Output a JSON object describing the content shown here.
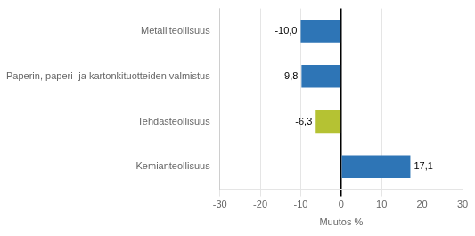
{
  "chart_data": {
    "type": "bar",
    "orientation": "horizontal",
    "categories": [
      "Metalliteollisuus",
      "Paperin, paperi- ja kartonkituotteiden valmistus",
      "Tehdasteollisuus",
      "Kemianteollisuus"
    ],
    "values": [
      -10.0,
      -9.8,
      -6.3,
      17.1
    ],
    "value_labels": [
      "-10,0",
      "-9,8",
      "-6,3",
      "17,1"
    ],
    "data_labels": true,
    "colors": [
      "#2E75B6",
      "#2E75B6",
      "#B5C233",
      "#2E75B6"
    ],
    "xlabel": "Muutos %",
    "xlim": [
      -30,
      30
    ],
    "xticks": [
      -30,
      -20,
      -10,
      0,
      10,
      20,
      30
    ],
    "grid": true
  }
}
